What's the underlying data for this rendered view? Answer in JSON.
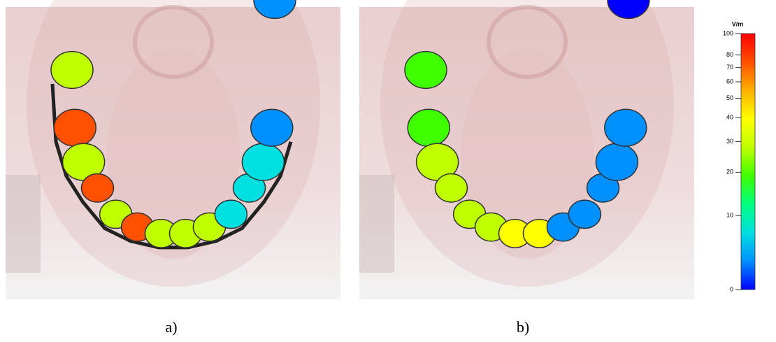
{
  "figure": {
    "panels": [
      {
        "label": "a)"
      },
      {
        "label": "b)"
      }
    ],
    "colorbar": {
      "unit": "V/m",
      "lim": [
        0,
        100
      ],
      "ticks": [
        0,
        10,
        20,
        30,
        40,
        50,
        60,
        70,
        80,
        100
      ],
      "colors": [
        "#0000ff",
        "#0090ff",
        "#00e0e0",
        "#00ff80",
        "#40ff00",
        "#c0ff00",
        "#ffff00",
        "#ffb000",
        "#ff5000",
        "#ff0000"
      ]
    }
  }
}
